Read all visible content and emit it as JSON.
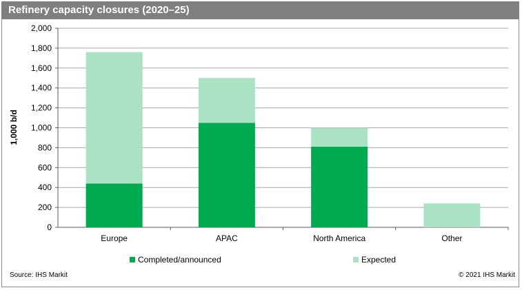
{
  "header": {
    "title": "Refinery capacity closures (2020–25)"
  },
  "footer": {
    "source": "Source: IHS Markit",
    "copyright": "© 2021 IHS Markit"
  },
  "colors": {
    "completed": "#00aa4f",
    "expected": "#abe2c4",
    "title_bar": "#7f7f7f",
    "grid": "#a6a6a6"
  },
  "chart_data": {
    "type": "bar",
    "stacked": true,
    "categories": [
      "Europe",
      "APAC",
      "North America",
      "Other"
    ],
    "series": [
      {
        "name": "Completed/announced",
        "values": [
          440,
          1050,
          810,
          0
        ]
      },
      {
        "name": "Expected",
        "values": [
          1320,
          450,
          190,
          240
        ]
      }
    ],
    "title": "Refinery capacity closures (2020–25)",
    "xlabel": "",
    "ylabel": "1,000 b/d",
    "ylim": [
      0,
      2000
    ],
    "yticks": [
      0,
      200,
      400,
      600,
      800,
      1000,
      1200,
      1400,
      1600,
      1800,
      2000
    ],
    "ytick_labels": [
      "0",
      "200",
      "400",
      "600",
      "800",
      "1,000",
      "1,200",
      "1,400",
      "1,600",
      "1,800",
      "2,000"
    ],
    "grid": true,
    "legend": "bottom"
  }
}
